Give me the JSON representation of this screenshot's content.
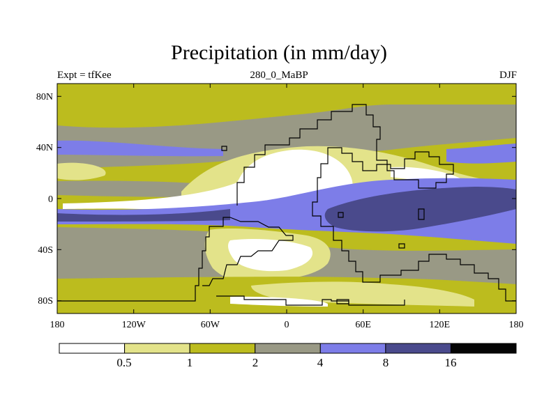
{
  "title": "Precipitation (in mm/day)",
  "subtitle_left": "Expt = tfKee",
  "subtitle_center": "280_0_MaBP",
  "subtitle_right": "DJF",
  "x_ticks": [
    "180",
    "120W",
    "60W",
    "0",
    "60E",
    "120E",
    "180"
  ],
  "y_ticks": [
    "80N",
    "40N",
    "0",
    "40S",
    "80S"
  ],
  "colorbar": {
    "levels": [
      "0.5",
      "1",
      "2",
      "4",
      "8",
      "16"
    ],
    "colors": [
      "#ffffff",
      "#e3e38a",
      "#bcbc1e",
      "#999985",
      "#7d7de8",
      "#4a4a8c",
      "#050505"
    ]
  },
  "map_data": {
    "projection": "cylindrical-equidistant",
    "lon_range": [
      -180,
      180
    ],
    "lat_range": [
      -90,
      90
    ],
    "units": "mm/day",
    "field_note": "contour-filled precipitation field with continental outlines (Pangaea)"
  }
}
